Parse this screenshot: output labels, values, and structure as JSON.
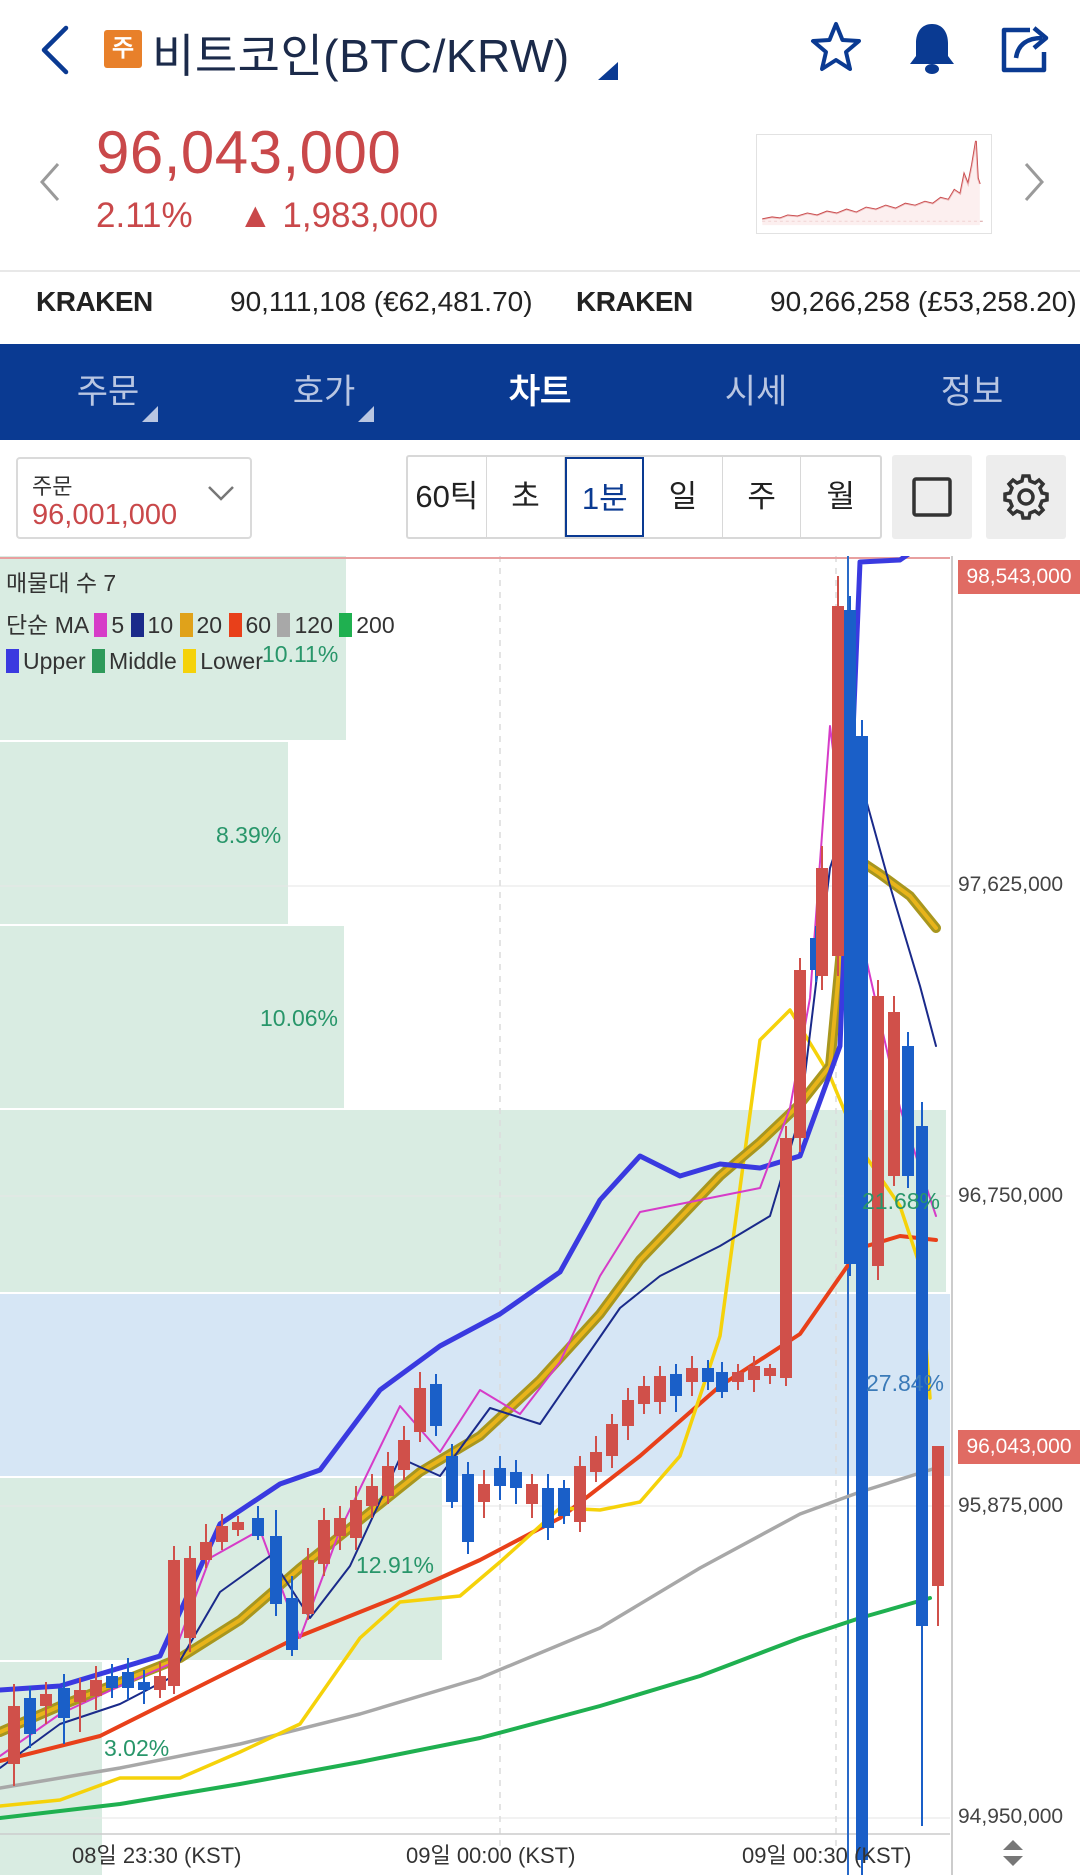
{
  "header": {
    "badge": "주",
    "title": "비트코인(BTC/KRW)"
  },
  "price": {
    "current": "96,043,000",
    "change_pct": "2.11%",
    "change_arrow": "▲",
    "change_amount": "1,983,000"
  },
  "exchanges": [
    {
      "name": "KRAKEN",
      "value": "90,111,108 (€62,481.70)"
    },
    {
      "name": "KRAKEN",
      "value": "90,266,258 (£53,258.20)"
    }
  ],
  "tabs": [
    {
      "label": "주문",
      "has_caret": true
    },
    {
      "label": "호가",
      "has_caret": true
    },
    {
      "label": "차트",
      "active": true
    },
    {
      "label": "시세"
    },
    {
      "label": "정보"
    }
  ],
  "order_select": {
    "label": "주문",
    "value": "96,001,000"
  },
  "timeframes": [
    "60틱",
    "초",
    "1분",
    "일",
    "주",
    "월"
  ],
  "timeframe_active": "1분",
  "chart_overlay": {
    "volume_profile_label": "매물대 수 7",
    "ma_label": "단순 MA",
    "ma_periods": [
      {
        "period": "5",
        "color": "#d63cc8"
      },
      {
        "period": "10",
        "color": "#1a2a8a"
      },
      {
        "period": "20",
        "color": "#e0a21a"
      },
      {
        "period": "60",
        "color": "#e8401a"
      },
      {
        "period": "120",
        "color": "#a8a8a8"
      },
      {
        "period": "200",
        "color": "#1fb050"
      }
    ],
    "bands": [
      {
        "name": "Upper",
        "color": "#3a3ae0"
      },
      {
        "name": "Middle",
        "color": "#2e9a5a"
      },
      {
        "name": "Lower",
        "color": "#f5d20a"
      }
    ]
  },
  "chart_data": {
    "type": "candlestick",
    "y_axis": [
      "98,543,000",
      "97,625,000",
      "96,750,000",
      "96,043,000",
      "95,875,000",
      "94,950,000"
    ],
    "ylim": [
      94950000,
      98543000
    ],
    "high_tag": "98,543,000",
    "current_tag": "96,043,000",
    "x_axis": [
      "08일 23:30 (KST)",
      "09일 00:00 (KST)",
      "09일 00:30 (KST)"
    ],
    "volume_profile": [
      {
        "pct": "10.11%"
      },
      {
        "pct": "8.39%"
      },
      {
        "pct": "10.06%"
      },
      {
        "pct": "21.68%"
      },
      {
        "pct": "27.84%"
      },
      {
        "pct": "12.91%"
      },
      {
        "pct": "3.02%"
      }
    ]
  },
  "colors": {
    "brand_blue": "#0a3a92",
    "up_red": "#c9484a",
    "down_blue": "#1a5fc8"
  }
}
